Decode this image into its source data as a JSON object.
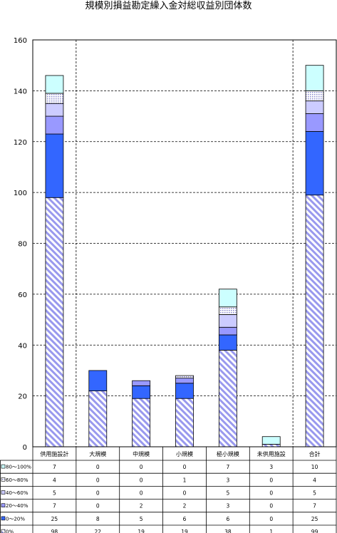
{
  "chart_data": {
    "type": "bar",
    "stacked": true,
    "title": "規模別損益勘定繰入金対総収益別団体数",
    "xlabel": "",
    "ylabel": "",
    "ylim": [
      0,
      160
    ],
    "yticks": [
      "0",
      "20",
      "40",
      "60",
      "80",
      "100",
      "120",
      "140",
      "160"
    ],
    "grid": true,
    "legend": "table-below",
    "categories": [
      "供用施設計",
      "大規模",
      "中規模",
      "小規模",
      "極小規模",
      "未供用施設",
      "合計"
    ],
    "series": [
      {
        "name": "0%",
        "values": [
          98,
          22,
          19,
          19,
          38,
          1,
          99
        ],
        "color": "#9999ee",
        "pattern": "diagonal"
      },
      {
        "name": "0～20%",
        "values": [
          25,
          8,
          5,
          6,
          6,
          0,
          25
        ],
        "color": "#3366ff"
      },
      {
        "name": "20～40%",
        "values": [
          7,
          0,
          2,
          2,
          3,
          0,
          7
        ],
        "color": "#9999ff"
      },
      {
        "name": "40～60%",
        "values": [
          5,
          0,
          0,
          0,
          5,
          0,
          5
        ],
        "color": "#ccccff"
      },
      {
        "name": "60～80%",
        "values": [
          4,
          0,
          0,
          1,
          3,
          0,
          4
        ],
        "color": "#ccccff",
        "pattern": "dots"
      },
      {
        "name": "80～100%",
        "values": [
          7,
          0,
          0,
          0,
          7,
          3,
          10
        ],
        "color": "#ccffff"
      }
    ],
    "table_rows": [
      "80～100%",
      "60～80%",
      "40～60%",
      "20～40%",
      "0～20%",
      "0%"
    ]
  }
}
